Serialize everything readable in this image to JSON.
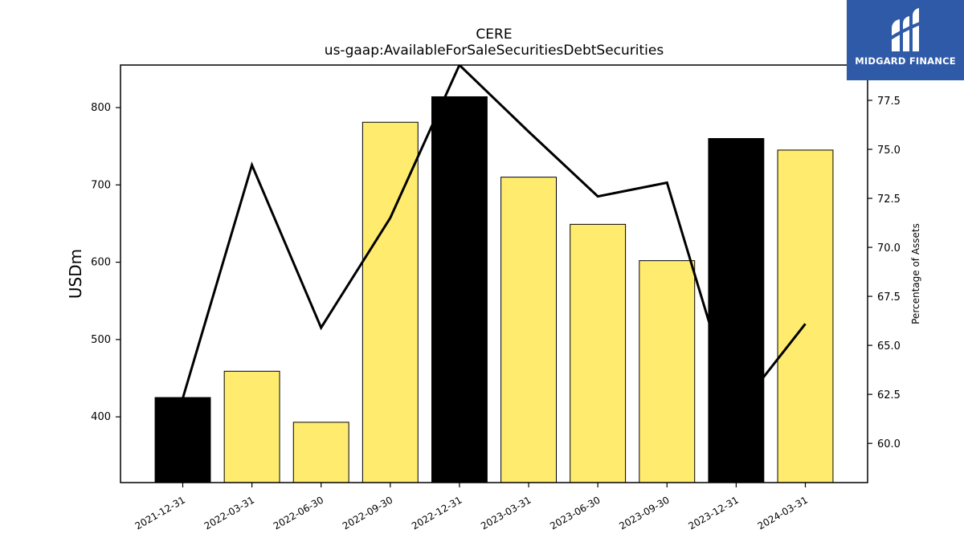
{
  "chart_data": {
    "type": "bar",
    "title": "CERE",
    "subtitle": "us-gaap:AvailableForSaleSecuritiesDebtSecurities",
    "ylabel": "USDm",
    "y2label": "Percentage of Assets",
    "categories": [
      "2021-12-31",
      "2022-03-31",
      "2022-06-30",
      "2022-09-30",
      "2022-12-31",
      "2023-03-31",
      "2023-06-30",
      "2023-09-30",
      "2023-12-31",
      "2024-03-31"
    ],
    "series": [
      {
        "type": "bar",
        "axis": "left",
        "values": [
          425,
          459,
          393,
          781,
          814,
          710,
          649,
          602,
          760,
          745
        ],
        "colors": [
          "#000000",
          "#ffec6e",
          "#ffec6e",
          "#ffec6e",
          "#000000",
          "#ffec6e",
          "#ffec6e",
          "#ffec6e",
          "#000000",
          "#ffec6e"
        ]
      },
      {
        "type": "line",
        "axis": "right",
        "color": "#000000",
        "values": [
          62.3,
          74.2,
          65.9,
          71.5,
          79.3,
          75.9,
          72.6,
          73.3,
          61.6,
          66.1
        ]
      }
    ],
    "ylim": [
      315,
      855
    ],
    "y2lim": [
      58.0,
      79.3
    ],
    "yticks": [
      400,
      500,
      600,
      700,
      800
    ],
    "y2ticks": [
      "60.0",
      "62.5",
      "65.0",
      "67.5",
      "70.0",
      "72.5",
      "75.0",
      "77.5"
    ],
    "grid": false
  },
  "logo": {
    "text": "MIDGARD FINANCE",
    "background": "#2f5aa8"
  }
}
